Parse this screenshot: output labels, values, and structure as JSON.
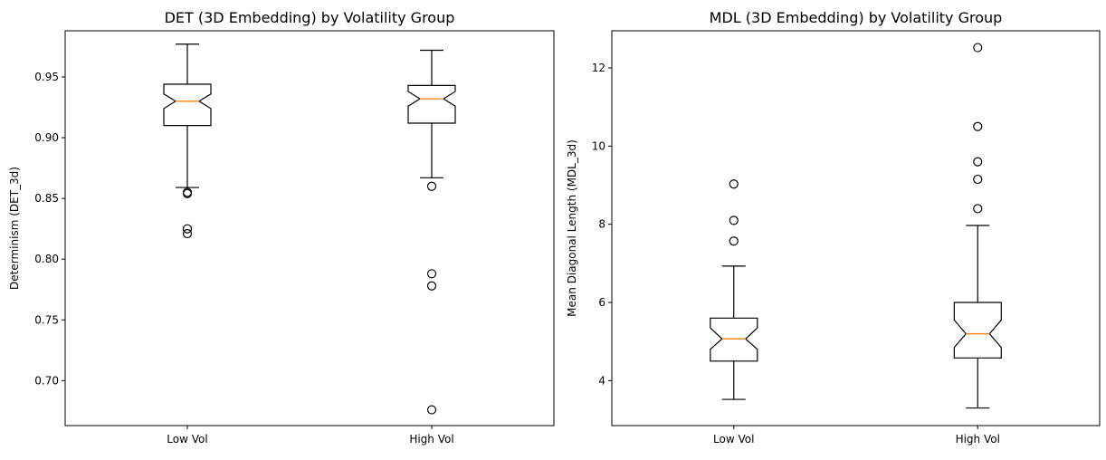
{
  "chart_data": [
    {
      "type": "box",
      "title": "DET (3D Embedding) by Volatility Group",
      "xlabel": "",
      "ylabel": "Determinism (DET_3d)",
      "ylim": [
        0.663,
        0.988
      ],
      "yticks": [
        0.7,
        0.75,
        0.8,
        0.85,
        0.9,
        0.95
      ],
      "ytick_labels": [
        "0.70",
        "0.75",
        "0.80",
        "0.85",
        "0.90",
        "0.95"
      ],
      "notched": true,
      "categories": [
        "Low Vol",
        "High Vol"
      ],
      "boxes": [
        {
          "name": "Low Vol",
          "whisker_low": 0.859,
          "q1": 0.91,
          "median": 0.93,
          "q3": 0.944,
          "whisker_high": 0.977,
          "notch_low": 0.924,
          "notch_high": 0.936,
          "outliers": [
            0.855,
            0.854,
            0.825,
            0.821
          ]
        },
        {
          "name": "High Vol",
          "whisker_low": 0.867,
          "q1": 0.912,
          "median": 0.932,
          "q3": 0.943,
          "whisker_high": 0.972,
          "notch_low": 0.926,
          "notch_high": 0.938,
          "outliers": [
            0.86,
            0.788,
            0.778,
            0.676
          ]
        }
      ]
    },
    {
      "type": "box",
      "title": "MDL (3D Embedding) by Volatility Group",
      "xlabel": "",
      "ylabel": "Mean Diagonal Length (MDL_3d)",
      "ylim": [
        2.85,
        12.95
      ],
      "yticks": [
        4,
        6,
        8,
        10,
        12
      ],
      "ytick_labels": [
        "4",
        "6",
        "8",
        "10",
        "12"
      ],
      "notched": true,
      "categories": [
        "Low Vol",
        "High Vol"
      ],
      "boxes": [
        {
          "name": "Low Vol",
          "whisker_low": 3.52,
          "q1": 4.5,
          "median": 5.07,
          "q3": 5.6,
          "whisker_high": 6.93,
          "notch_low": 4.8,
          "notch_high": 5.35,
          "outliers": [
            9.03,
            8.1,
            7.57
          ]
        },
        {
          "name": "High Vol",
          "whisker_low": 3.3,
          "q1": 4.58,
          "median": 5.2,
          "q3": 6.0,
          "whisker_high": 7.97,
          "notch_low": 4.85,
          "notch_high": 5.55,
          "outliers": [
            12.52,
            10.5,
            9.6,
            9.15,
            8.4
          ]
        }
      ]
    }
  ]
}
